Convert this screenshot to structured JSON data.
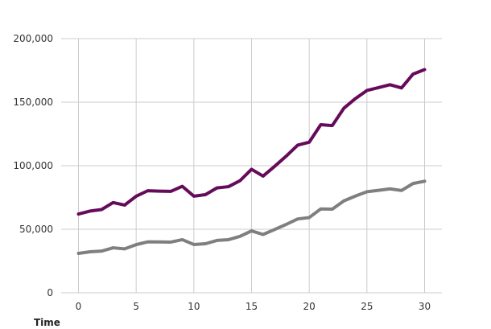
{
  "chart_data": {
    "type": "line",
    "title": "",
    "xlabel": "Time",
    "ylabel": "",
    "xlim": [
      -1.5,
      31.5
    ],
    "ylim": [
      0,
      200000
    ],
    "grid": true,
    "legend": "none",
    "x_ticks": [
      0,
      5,
      10,
      15,
      20,
      25,
      30
    ],
    "x_tick_labels": [
      "0",
      "5",
      "10",
      "15",
      "20",
      "25",
      "30"
    ],
    "y_ticks": [
      0,
      50000,
      100000,
      150000,
      200000
    ],
    "y_tick_labels": [
      "0",
      "50,000",
      "100,000",
      "150,000",
      "200,000"
    ],
    "x": [
      0,
      1,
      2,
      3,
      4,
      5,
      6,
      7,
      8,
      9,
      10,
      11,
      12,
      13,
      14,
      15,
      16,
      17,
      18,
      19,
      20,
      21,
      22,
      23,
      24,
      25,
      26,
      27,
      28,
      29,
      30
    ],
    "series": [
      {
        "color": "#650b5a",
        "values": [
          62000,
          64300,
          65500,
          71000,
          69000,
          76000,
          80300,
          80000,
          79800,
          83800,
          76000,
          77200,
          82500,
          83500,
          88200,
          97200,
          91800,
          99500,
          107500,
          116200,
          118500,
          132300,
          131600,
          145200,
          152800,
          159200,
          161400,
          163700,
          161200,
          172100,
          175600
        ]
      },
      {
        "color": "#7f7f7f",
        "values": [
          31000,
          32300,
          32800,
          35400,
          34600,
          37900,
          40100,
          40000,
          39900,
          41800,
          38000,
          38600,
          41200,
          41800,
          44400,
          48700,
          45900,
          49800,
          53800,
          58100,
          59200,
          66000,
          65800,
          72300,
          76100,
          79500,
          80600,
          81800,
          80500,
          86000,
          87800
        ]
      }
    ]
  }
}
